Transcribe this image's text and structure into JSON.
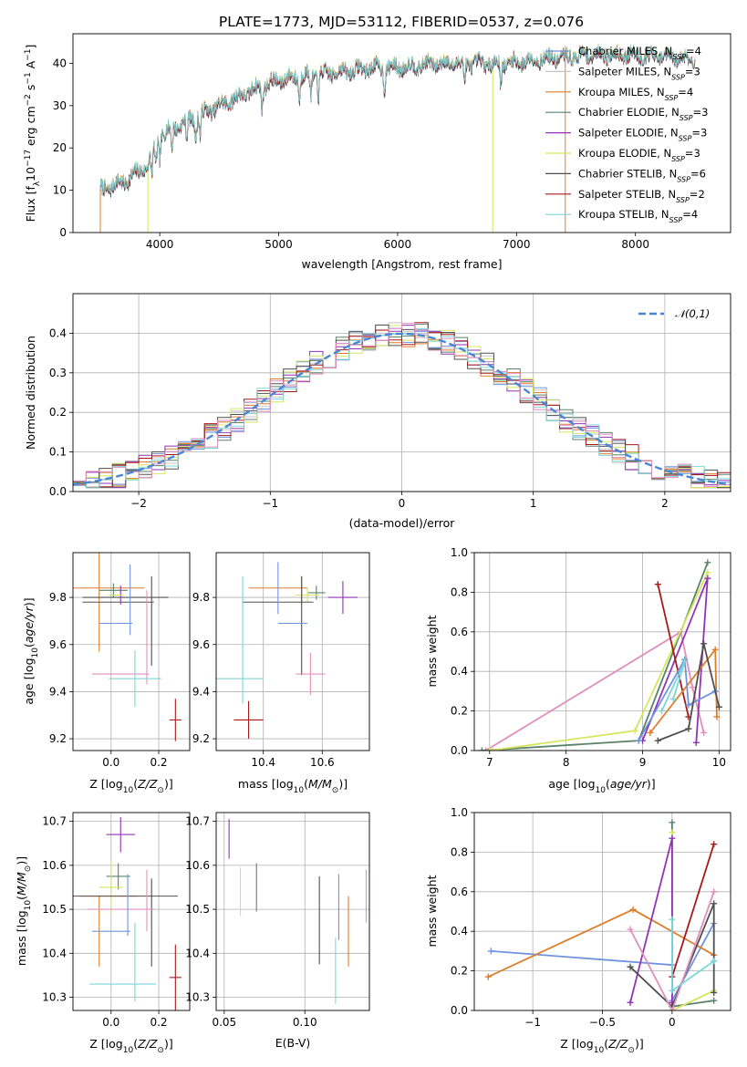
{
  "title": "PLATE=1773, MJD=53112, FIBERID=0537, z=0.076",
  "model_colors": [
    "#6f94dd",
    "#c5c5c5",
    "#de7e2a",
    "#5a836a",
    "#9133b5",
    "#d5e65e",
    "#505050",
    "#a71a1a",
    "#7cd6d9"
  ],
  "chart_data": [
    {
      "id": "spectrum",
      "type": "line",
      "xlabel": "wavelength [Angstrom, rest frame]",
      "ylabel": "Flux [f_λ10^-17 erg cm^-2 s^-1 A^-1]",
      "xlim": [
        3270,
        8800
      ],
      "ylim": [
        0,
        47
      ],
      "xticks": [
        4000,
        5000,
        6000,
        7000,
        8000
      ],
      "yticks": [
        0,
        10,
        20,
        30,
        40
      ],
      "grid": false,
      "legend_position": "top-right",
      "x_start": 3500,
      "x_end": 8500,
      "continuum": [
        [
          3500,
          10
        ],
        [
          3700,
          12
        ],
        [
          3900,
          16
        ],
        [
          4000,
          23
        ],
        [
          4200,
          26
        ],
        [
          4500,
          30
        ],
        [
          4800,
          34
        ],
        [
          5000,
          36
        ],
        [
          5200,
          37
        ],
        [
          5500,
          38
        ],
        [
          5800,
          39
        ],
        [
          6000,
          39
        ],
        [
          6300,
          40
        ],
        [
          6600,
          40
        ],
        [
          6900,
          40
        ],
        [
          7200,
          41
        ],
        [
          7600,
          42
        ],
        [
          8000,
          42
        ],
        [
          8500,
          41
        ]
      ],
      "series": [
        {
          "name": "Chabrier MILES",
          "nssp": "4",
          "color": "#6f94dd"
        },
        {
          "name": "Salpeter MILES",
          "nssp": "3",
          "color": "#c5c5c5"
        },
        {
          "name": "Kroupa MILES",
          "nssp": "4",
          "color": "#de7e2a"
        },
        {
          "name": "Chabrier ELODIE",
          "nssp": "3",
          "color": "#5a836a"
        },
        {
          "name": "Salpeter ELODIE",
          "nssp": "3",
          "color": "#9133b5"
        },
        {
          "name": "Kroupa ELODIE",
          "nssp": "3",
          "color": "#d5e65e"
        },
        {
          "name": "Chabrier STELIB",
          "nssp": "6",
          "color": "#505050"
        },
        {
          "name": "Salpeter STELIB",
          "nssp": "2",
          "color": "#a71a1a"
        },
        {
          "name": "Kroupa STELIB",
          "nssp": "4",
          "color": "#7cd6d9"
        }
      ],
      "edge_drops": [
        {
          "x": 3500,
          "color": "#de7e2a"
        },
        {
          "x": 3900,
          "color": "#d5e65e"
        },
        {
          "x": 6800,
          "color": "#d5e65e"
        },
        {
          "x": 7410,
          "color": "#de7e2a"
        }
      ]
    },
    {
      "id": "residuals",
      "type": "histogram",
      "xlabel": "(data-model)/error",
      "ylabel": "Normed distribution",
      "xlim": [
        -2.5,
        2.5
      ],
      "ylim": [
        0,
        0.5
      ],
      "xticks": [
        -2,
        -1,
        0,
        1,
        2
      ],
      "yticks": [
        0.0,
        0.1,
        0.2,
        0.3,
        0.4
      ],
      "grid": true,
      "bin_width": 0.1,
      "gaussian_label": "𝒩(0,1)",
      "gaussian_color": "#4a86d6",
      "legend_position": "top-right"
    },
    {
      "id": "age-vs-Z",
      "type": "errorbar",
      "xlabel": "Z [log10(Z/Z☉)]",
      "ylabel": "age [log10(age/yr)]",
      "xlim": [
        -0.16,
        0.33
      ],
      "ylim": [
        9.15,
        9.99
      ],
      "xticks": [
        0.0,
        0.2
      ],
      "xtick_labels": [
        "0.0",
        "0.2"
      ],
      "yticks": [
        9.2,
        9.4,
        9.6,
        9.8
      ],
      "grid": true,
      "points": [
        {
          "x": -0.01,
          "y": 9.84,
          "xerr": 0.15,
          "yerr": 0.0,
          "color": "#de7e2a"
        },
        {
          "x": -0.05,
          "y": 9.84,
          "xerr": 0.0,
          "yerr": 0.27,
          "color": "#de7e2a"
        },
        {
          "x": 0.01,
          "y": 9.83,
          "xerr": 0.06,
          "yerr": 0.03,
          "color": "#5a836a"
        },
        {
          "x": 0.04,
          "y": 9.81,
          "xerr": 0.0,
          "yerr": 0.04,
          "color": "#9133b5"
        },
        {
          "x": 0.02,
          "y": 9.81,
          "xerr": 0.03,
          "yerr": 0.0,
          "color": "#d5e65e"
        },
        {
          "x": 0.06,
          "y": 9.8,
          "xerr": 0.18,
          "yerr": 0.0,
          "color": "#505050"
        },
        {
          "x": 0.03,
          "y": 9.78,
          "xerr": 0.15,
          "yerr": 0.0,
          "color": "#505050"
        },
        {
          "x": 0.17,
          "y": 9.7,
          "xerr": 0.0,
          "yerr": 0.19,
          "color": "#505050"
        },
        {
          "x": 0.02,
          "y": 9.69,
          "xerr": 0.07,
          "yerr": 0.0,
          "color": "#6f94dd"
        },
        {
          "x": 0.08,
          "y": 9.79,
          "xerr": 0.0,
          "yerr": 0.15,
          "color": "#6f94dd"
        },
        {
          "x": 0.04,
          "y": 9.475,
          "xerr": 0.12,
          "yerr": 0.0,
          "color": "#e08fbd"
        },
        {
          "x": 0.15,
          "y": 9.63,
          "xerr": 0.0,
          "yerr": 0.2,
          "color": "#e08fbd"
        },
        {
          "x": 0.1,
          "y": 9.455,
          "xerr": 0.11,
          "yerr": 0.12,
          "color": "#7cd6d9"
        },
        {
          "x": 0.27,
          "y": 9.28,
          "xerr": 0.025,
          "yerr": 0.09,
          "color": "#a71a1a"
        }
      ]
    },
    {
      "id": "age-vs-mass",
      "type": "errorbar",
      "xlabel": "mass [log10(M/M☉)]",
      "ylabel": "",
      "xlim": [
        10.24,
        10.76
      ],
      "ylim": [
        9.15,
        9.99
      ],
      "xticks": [
        10.4,
        10.6
      ],
      "yticks": [
        9.2,
        9.4,
        9.6,
        9.8
      ],
      "grid": true,
      "points": [
        {
          "x": 10.45,
          "y": 9.84,
          "xerr": 0.1,
          "yerr": 0.0,
          "color": "#de7e2a"
        },
        {
          "x": 10.53,
          "y": 9.83,
          "xerr": 0.0,
          "yerr": 0.06,
          "color": "#de7e2a"
        },
        {
          "x": 10.58,
          "y": 9.82,
          "xerr": 0.03,
          "yerr": 0.03,
          "color": "#5a836a"
        },
        {
          "x": 10.55,
          "y": 9.81,
          "xerr": 0.04,
          "yerr": 0.03,
          "color": "#d5e65e"
        },
        {
          "x": 10.67,
          "y": 9.8,
          "xerr": 0.05,
          "yerr": 0.07,
          "color": "#9133b5"
        },
        {
          "x": 10.45,
          "y": 9.78,
          "xerr": 0.12,
          "yerr": 0.0,
          "color": "#505050"
        },
        {
          "x": 10.53,
          "y": 9.68,
          "xerr": 0.0,
          "yerr": 0.21,
          "color": "#505050"
        },
        {
          "x": 10.5,
          "y": 9.69,
          "xerr": 0.05,
          "yerr": 0.0,
          "color": "#6f94dd"
        },
        {
          "x": 10.45,
          "y": 9.84,
          "xerr": 0.0,
          "yerr": 0.11,
          "color": "#6f94dd"
        },
        {
          "x": 10.56,
          "y": 9.475,
          "xerr": 0.05,
          "yerr": 0.09,
          "color": "#e08fbd"
        },
        {
          "x": 10.32,
          "y": 9.455,
          "xerr": 0.08,
          "yerr": 0.0,
          "color": "#7cd6d9"
        },
        {
          "x": 10.33,
          "y": 9.62,
          "xerr": 0.0,
          "yerr": 0.27,
          "color": "#7cd6d9"
        },
        {
          "x": 10.35,
          "y": 9.28,
          "xerr": 0.05,
          "yerr": 0.08,
          "color": "#a71a1a"
        }
      ]
    },
    {
      "id": "weight-vs-age",
      "type": "line",
      "xlabel": "age [log10(age/yr)]",
      "ylabel": "mass weight",
      "xlim": [
        6.8,
        10.15
      ],
      "ylim": [
        0,
        1
      ],
      "xticks": [
        7,
        8,
        9,
        10
      ],
      "yticks": [
        0.0,
        0.2,
        0.4,
        0.6,
        0.8,
        1.0
      ],
      "grid": true,
      "series": [
        {
          "color": "#e08fbd",
          "points": [
            [
              6.95,
              0.0
            ],
            [
              9.5,
              0.6
            ],
            [
              9.65,
              0.32
            ],
            [
              9.8,
              0.09
            ]
          ]
        },
        {
          "color": "#5a836a",
          "points": [
            [
              6.9,
              0.0
            ],
            [
              8.95,
              0.05
            ],
            [
              9.85,
              0.95
            ]
          ]
        },
        {
          "color": "#d5e65e",
          "points": [
            [
              7.0,
              0.0
            ],
            [
              8.9,
              0.1
            ],
            [
              9.85,
              0.9
            ]
          ]
        },
        {
          "color": "#9133b5",
          "points": [
            [
              9.0,
              0.05
            ],
            [
              9.85,
              0.87
            ],
            [
              9.7,
              0.04
            ]
          ]
        },
        {
          "color": "#a71a1a",
          "points": [
            [
              9.2,
              0.84
            ],
            [
              9.6,
              0.17
            ]
          ]
        },
        {
          "color": "#de7e2a",
          "points": [
            [
              9.1,
              0.09
            ],
            [
              9.95,
              0.51
            ],
            [
              9.97,
              0.17
            ]
          ]
        },
        {
          "color": "#6f94dd",
          "points": [
            [
              8.95,
              0.05
            ],
            [
              9.55,
              0.46
            ],
            [
              9.6,
              0.23
            ],
            [
              9.95,
              0.3
            ]
          ]
        },
        {
          "color": "#505050",
          "points": [
            [
              9.2,
              0.05
            ],
            [
              9.6,
              0.11
            ],
            [
              9.8,
              0.54
            ],
            [
              10.0,
              0.22
            ]
          ]
        },
        {
          "color": "#7cd6d9",
          "points": [
            [
              9.25,
              0.2
            ],
            [
              9.55,
              0.45
            ],
            [
              9.4,
              0.26
            ]
          ]
        }
      ]
    },
    {
      "id": "mass-vs-Z",
      "type": "errorbar",
      "xlabel": "Z [log10(Z/Z☉)]",
      "ylabel": "mass [log10(M/M☉)]",
      "xlim": [
        -0.16,
        0.33
      ],
      "ylim": [
        10.27,
        10.72
      ],
      "xticks": [
        0.0,
        0.2
      ],
      "xtick_labels": [
        "0.0",
        "0.2"
      ],
      "yticks": [
        10.3,
        10.4,
        10.5,
        10.6,
        10.7
      ],
      "grid": true,
      "points": [
        {
          "x": 0.04,
          "y": 10.67,
          "xerr": 0.06,
          "yerr": 0.04,
          "color": "#9133b5"
        },
        {
          "x": 0.03,
          "y": 10.575,
          "xerr": 0.05,
          "yerr": 0.03,
          "color": "#5a836a"
        },
        {
          "x": 0.0,
          "y": 10.55,
          "xerr": 0.05,
          "yerr": 0.06,
          "color": "#d5e65e"
        },
        {
          "x": -0.01,
          "y": 10.53,
          "xerr": 0.12,
          "yerr": 0.0,
          "color": "#de7e2a"
        },
        {
          "x": -0.05,
          "y": 10.45,
          "xerr": 0.0,
          "yerr": 0.08,
          "color": "#de7e2a"
        },
        {
          "x": 0.06,
          "y": 10.53,
          "xerr": 0.22,
          "yerr": 0.0,
          "color": "#505050"
        },
        {
          "x": 0.17,
          "y": 10.47,
          "xerr": 0.0,
          "yerr": 0.1,
          "color": "#505050"
        },
        {
          "x": 0.04,
          "y": 10.5,
          "xerr": 0.14,
          "yerr": 0.0,
          "color": "#e08fbd"
        },
        {
          "x": 0.15,
          "y": 10.52,
          "xerr": 0.0,
          "yerr": 0.07,
          "color": "#e08fbd"
        },
        {
          "x": 0.0,
          "y": 10.45,
          "xerr": 0.08,
          "yerr": 0.0,
          "color": "#6f94dd"
        },
        {
          "x": 0.07,
          "y": 10.51,
          "xerr": 0.0,
          "yerr": 0.07,
          "color": "#6f94dd"
        },
        {
          "x": 0.1,
          "y": 10.38,
          "xerr": 0.0,
          "yerr": 0.09,
          "color": "#7cd6d9"
        },
        {
          "x": 0.05,
          "y": 10.33,
          "xerr": 0.14,
          "yerr": 0.0,
          "color": "#7cd6d9"
        },
        {
          "x": 0.27,
          "y": 10.345,
          "xerr": 0.025,
          "yerr": 0.075,
          "color": "#a71a1a"
        }
      ]
    },
    {
      "id": "mass-vs-ebv",
      "type": "errorbar",
      "xlabel": "E(B-V)",
      "ylabel": "",
      "xlim": [
        0.045,
        0.14
      ],
      "ylim": [
        10.27,
        10.72
      ],
      "xticks": [
        0.05,
        0.1
      ],
      "yticks": [
        10.3,
        10.4,
        10.5,
        10.6,
        10.7
      ],
      "grid": true,
      "points": [
        {
          "x": 0.053,
          "y": 10.66,
          "xerr": 0.0,
          "yerr": 0.045,
          "color": "#9133b5"
        },
        {
          "x": 0.06,
          "y": 10.54,
          "xerr": 0.0,
          "yerr": 0.055,
          "color": "#d5e65e"
        },
        {
          "x": 0.07,
          "y": 10.55,
          "xerr": 0.0,
          "yerr": 0.055,
          "color": "#5a836a"
        },
        {
          "x": 0.109,
          "y": 10.475,
          "xerr": 0.0,
          "yerr": 0.1,
          "color": "#505050"
        },
        {
          "x": 0.119,
          "y": 10.36,
          "xerr": 0.0,
          "yerr": 0.075,
          "color": "#7cd6d9"
        },
        {
          "x": 0.121,
          "y": 10.505,
          "xerr": 0.0,
          "yerr": 0.075,
          "color": "#6f94dd"
        },
        {
          "x": 0.127,
          "y": 10.45,
          "xerr": 0.0,
          "yerr": 0.08,
          "color": "#de7e2a"
        },
        {
          "x": 0.138,
          "y": 10.53,
          "xerr": 0.0,
          "yerr": 0.06,
          "color": "#e08fbd"
        }
      ]
    },
    {
      "id": "weight-vs-Z",
      "type": "line",
      "xlabel": "Z [log10(Z/Z☉)]",
      "ylabel": "mass weight",
      "xlim": [
        -1.42,
        0.42
      ],
      "ylim": [
        0,
        1
      ],
      "xticks": [
        -1.0,
        -0.5,
        0.0
      ],
      "yticks": [
        0.0,
        0.2,
        0.4,
        0.6,
        0.8,
        1.0
      ],
      "grid": true,
      "series": [
        {
          "color": "#6f94dd",
          "points": [
            [
              -1.3,
              0.3
            ],
            [
              0.0,
              0.23
            ],
            [
              0.0,
              0.05
            ],
            [
              0.3,
              0.44
            ]
          ]
        },
        {
          "color": "#de7e2a",
          "points": [
            [
              -1.32,
              0.17
            ],
            [
              -0.28,
              0.51
            ],
            [
              0.3,
              0.28
            ]
          ]
        },
        {
          "color": "#5a836a",
          "points": [
            [
              0.0,
              0.95
            ],
            [
              0.0,
              0.02
            ],
            [
              0.3,
              0.05
            ]
          ]
        },
        {
          "color": "#d5e65e",
          "points": [
            [
              0.0,
              0.9
            ],
            [
              0.0,
              0.0
            ],
            [
              0.3,
              0.1
            ]
          ]
        },
        {
          "color": "#9133b5",
          "points": [
            [
              -0.3,
              0.04
            ],
            [
              0.0,
              0.87
            ],
            [
              0.0,
              0.04
            ]
          ]
        },
        {
          "color": "#a71a1a",
          "points": [
            [
              0.0,
              0.17
            ],
            [
              0.3,
              0.84
            ]
          ]
        },
        {
          "color": "#505050",
          "points": [
            [
              -0.3,
              0.22
            ],
            [
              0.0,
              0.02
            ],
            [
              0.3,
              0.54
            ],
            [
              0.3,
              0.09
            ]
          ]
        },
        {
          "color": "#e08fbd",
          "points": [
            [
              -0.3,
              0.41
            ],
            [
              0.0,
              0.0
            ],
            [
              0.3,
              0.6
            ]
          ]
        },
        {
          "color": "#7cd6d9",
          "points": [
            [
              0.0,
              0.46
            ],
            [
              0.0,
              0.1
            ],
            [
              0.3,
              0.25
            ]
          ]
        }
      ]
    }
  ]
}
